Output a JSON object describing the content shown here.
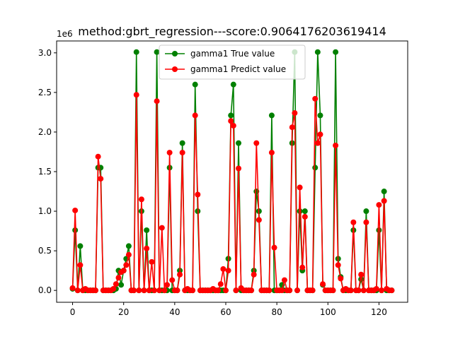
{
  "chart_data": {
    "type": "line",
    "title": "method:gbrt_regression---score:0.9064176203619414",
    "xlabel": "",
    "ylabel": "",
    "y_scale_label": "1e6",
    "xlim": [
      -6.25,
      131.25
    ],
    "ylim": [
      -150000,
      3150000
    ],
    "xticks": [
      0,
      20,
      40,
      60,
      80,
      100,
      120
    ],
    "xtick_labels": [
      "0",
      "20",
      "40",
      "60",
      "80",
      "100",
      "120"
    ],
    "yticks": [
      0,
      500000,
      1000000,
      1500000,
      2000000,
      2500000,
      3000000
    ],
    "ytick_labels": [
      "0.0",
      "0.5",
      "1.0",
      "1.5",
      "2.0",
      "2.5",
      "3.0"
    ],
    "grid": false,
    "legend_position": "upper center",
    "series": [
      {
        "name": "gamma1 True value",
        "color": "#008000",
        "marker": "circle",
        "x": [
          0,
          1,
          2,
          3,
          4,
          5,
          6,
          7,
          8,
          9,
          10,
          11,
          12,
          13,
          14,
          15,
          16,
          17,
          18,
          19,
          20,
          21,
          22,
          23,
          24,
          25,
          26,
          27,
          28,
          29,
          30,
          31,
          32,
          33,
          34,
          35,
          36,
          37,
          38,
          39,
          40,
          41,
          42,
          43,
          44,
          45,
          46,
          47,
          48,
          49,
          50,
          51,
          52,
          53,
          54,
          55,
          56,
          57,
          58,
          59,
          60,
          61,
          62,
          63,
          64,
          65,
          66,
          67,
          68,
          69,
          70,
          71,
          72,
          73,
          74,
          75,
          76,
          77,
          78,
          79,
          80,
          81,
          82,
          83,
          84,
          85,
          86,
          87,
          88,
          89,
          90,
          91,
          92,
          93,
          94,
          95,
          96,
          97,
          98,
          99,
          100,
          101,
          102,
          103,
          104,
          105,
          106,
          107,
          108,
          109,
          110,
          111,
          112,
          113,
          114,
          115,
          116,
          117,
          118,
          119,
          120,
          121,
          122,
          123,
          124,
          125
        ],
        "values": [
          20000,
          760000,
          0,
          560000,
          0,
          0,
          0,
          0,
          0,
          0,
          1550000,
          1550000,
          0,
          0,
          0,
          0,
          0,
          20000,
          250000,
          70000,
          250000,
          400000,
          560000,
          0,
          0,
          3010000,
          0,
          1000000,
          0,
          760000,
          0,
          0,
          0,
          3010000,
          0,
          0,
          0,
          0,
          1550000,
          0,
          0,
          0,
          250000,
          1860000,
          0,
          0,
          0,
          0,
          2600000,
          1000000,
          0,
          0,
          0,
          0,
          0,
          0,
          0,
          0,
          0,
          0,
          0,
          400000,
          2210000,
          2600000,
          0,
          1860000,
          0,
          0,
          0,
          0,
          0,
          250000,
          1250000,
          1000000,
          0,
          0,
          0,
          0,
          2210000,
          0,
          0,
          0,
          70000,
          0,
          0,
          0,
          1860000,
          3010000,
          0,
          1000000,
          250000,
          1000000,
          0,
          0,
          0,
          1550000,
          3010000,
          2210000,
          70000,
          0,
          0,
          0,
          0,
          3010000,
          400000,
          170000,
          0,
          0,
          0,
          0,
          760000,
          0,
          0,
          140000,
          0,
          1000000,
          0,
          0,
          0,
          0,
          760000,
          0,
          1250000,
          0,
          0,
          0
        ]
      },
      {
        "name": "gamma1 Predict value",
        "color": "#ff0000",
        "marker": "circle",
        "x": [
          0,
          1,
          2,
          3,
          4,
          5,
          6,
          7,
          8,
          9,
          10,
          11,
          12,
          13,
          14,
          15,
          16,
          17,
          18,
          19,
          20,
          21,
          22,
          23,
          24,
          25,
          26,
          27,
          28,
          29,
          30,
          31,
          32,
          33,
          34,
          35,
          36,
          37,
          38,
          39,
          40,
          41,
          42,
          43,
          44,
          45,
          46,
          47,
          48,
          49,
          50,
          51,
          52,
          53,
          54,
          55,
          56,
          57,
          58,
          59,
          60,
          61,
          62,
          63,
          64,
          65,
          66,
          67,
          68,
          69,
          70,
          71,
          72,
          73,
          74,
          75,
          76,
          77,
          78,
          79,
          80,
          81,
          82,
          83,
          84,
          85,
          86,
          87,
          88,
          89,
          90,
          91,
          92,
          93,
          94,
          95,
          96,
          97,
          98,
          99,
          100,
          101,
          102,
          103,
          104,
          105,
          106,
          107,
          108,
          109,
          110,
          111,
          112,
          113,
          114,
          115,
          116,
          117,
          118,
          119,
          120,
          121,
          122,
          123,
          124,
          125
        ],
        "values": [
          30000,
          1010000,
          0,
          320000,
          0,
          20000,
          0,
          0,
          0,
          0,
          1690000,
          1410000,
          0,
          0,
          0,
          0,
          20000,
          80000,
          160000,
          230000,
          250000,
          320000,
          450000,
          0,
          0,
          2470000,
          0,
          1150000,
          0,
          530000,
          0,
          360000,
          0,
          2390000,
          0,
          790000,
          0,
          70000,
          1740000,
          130000,
          0,
          0,
          200000,
          1740000,
          0,
          20000,
          0,
          0,
          2210000,
          1210000,
          0,
          0,
          0,
          0,
          0,
          20000,
          0,
          0,
          80000,
          270000,
          0,
          250000,
          2140000,
          2080000,
          0,
          1540000,
          30000,
          0,
          0,
          0,
          0,
          200000,
          1860000,
          890000,
          0,
          0,
          0,
          0,
          1740000,
          540000,
          0,
          0,
          0,
          130000,
          0,
          0,
          2060000,
          2240000,
          0,
          1300000,
          290000,
          930000,
          0,
          0,
          0,
          2420000,
          1860000,
          1970000,
          80000,
          0,
          0,
          0,
          0,
          1830000,
          320000,
          150000,
          0,
          20000,
          0,
          0,
          860000,
          0,
          0,
          200000,
          0,
          860000,
          0,
          0,
          0,
          20000,
          1080000,
          0,
          1130000,
          20000,
          0,
          0
        ]
      }
    ]
  }
}
